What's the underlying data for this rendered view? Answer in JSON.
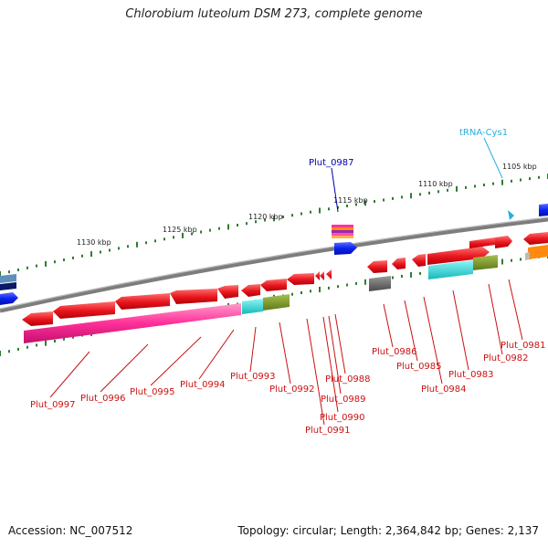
{
  "title": "Chlorobium luteolum DSM 273, complete genome",
  "footer": {
    "accession": "Accession: NC_007512",
    "summary": "Topology: circular; Length: 2,364,842 bp; Genes: 2,137"
  },
  "scale_labels": [
    "1130 kbp",
    "1125 kbp",
    "1120 kbp",
    "1115 kbp",
    "1110 kbp",
    "1105 kbp"
  ],
  "gene_labels": {
    "Plut_0997": "Plut_0997",
    "Plut_0996": "Plut_0996",
    "Plut_0995": "Plut_0995",
    "Plut_0994": "Plut_0994",
    "Plut_0993": "Plut_0993",
    "Plut_0992": "Plut_0992",
    "Plut_0991": "Plut_0991",
    "Plut_0990": "Plut_0990",
    "Plut_0989": "Plut_0989",
    "Plut_0988": "Plut_0988",
    "Plut_0987": "Plut_0987",
    "Plut_0986": "Plut_0986",
    "Plut_0985": "Plut_0985",
    "Plut_0984": "Plut_0984",
    "Plut_0983": "Plut_0983",
    "Plut_0982": "Plut_0982",
    "Plut_0981": "Plut_0981",
    "tRNA_Cys1": "tRNA-Cys1"
  },
  "colors": {
    "gene": "#e8141c",
    "gene_top": "#ff6a6a",
    "backbone": "#8a8a8a",
    "tick": "#2e7d32",
    "label_red": "#cc1111",
    "label_blue": "#0000aa",
    "label_cyan": "#2aaee0",
    "magenta": "#ff2f97",
    "teal": "#1ecfd0",
    "olive": "#7f9a2a",
    "dark_gray": "#666666",
    "blue": "#0a22ee",
    "orange": "#ff8a10"
  }
}
